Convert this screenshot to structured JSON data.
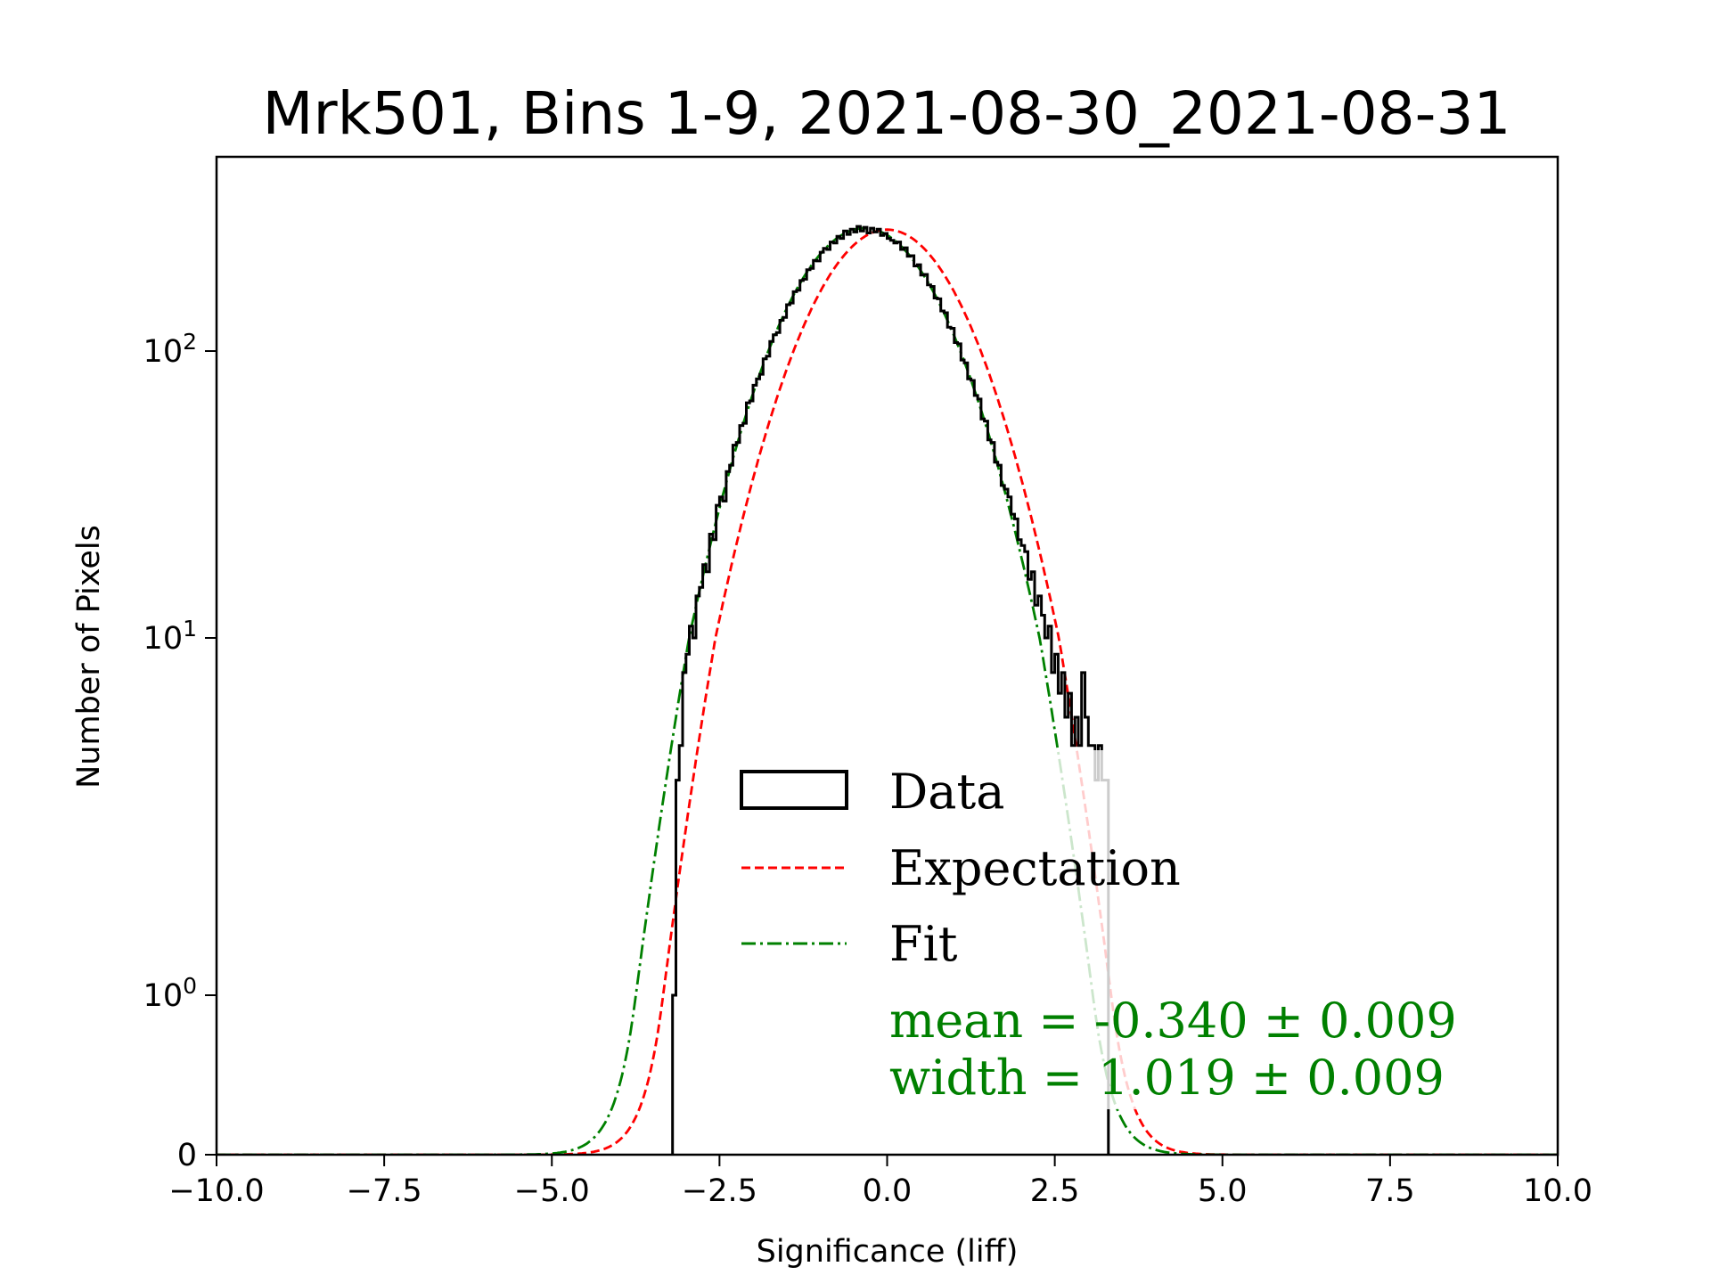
{
  "chart_data": {
    "type": "histogram",
    "title": "Mrk501, Bins 1-9, 2021-08-30_2021-08-31",
    "xlabel": "Significance (liff)",
    "ylabel": "Number of Pixels",
    "xlim": [
      -10,
      10
    ],
    "yscale": "symlog-like",
    "x_ticks": [
      -10,
      -7.5,
      -5,
      -2.5,
      0,
      2.5,
      5,
      7.5,
      10
    ],
    "x_tick_labels": [
      "−10.0",
      "−7.5",
      "−5.0",
      "−2.5",
      "0.0",
      "2.5",
      "5.0",
      "7.5",
      "10.0"
    ],
    "y_ticks": [
      {
        "value": 0,
        "base": "0",
        "exp": ""
      },
      {
        "value": 1,
        "base": "10",
        "exp": "0"
      },
      {
        "value": 10,
        "base": "10",
        "exp": "1"
      },
      {
        "value": 100,
        "base": "10",
        "exp": "2"
      }
    ],
    "histogram": {
      "name": "Data",
      "bin_start": -3.2,
      "bin_width": 0.05,
      "counts": [
        1,
        4,
        5,
        8,
        9,
        11,
        10,
        14,
        15,
        18,
        17,
        23,
        22,
        29,
        31,
        30,
        38,
        40,
        47,
        48,
        55,
        56,
        66,
        67,
        76,
        80,
        83,
        94,
        96,
        108,
        114,
        116,
        128,
        131,
        145,
        147,
        161,
        163,
        176,
        178,
        192,
        194,
        207,
        206,
        221,
        228,
        226,
        240,
        238,
        251,
        247,
        262,
        255,
        266,
        260,
        272,
        262,
        270,
        258,
        268,
        260,
        266,
        253,
        257,
        247,
        243,
        238,
        240,
        226,
        229,
        214,
        215,
        198,
        200,
        184,
        185,
        170,
        168,
        153,
        152,
        138,
        136,
        121,
        120,
        107,
        106,
        93,
        91,
        80,
        79,
        70,
        68,
        58,
        57,
        49,
        48,
        41,
        40,
        34,
        33,
        31,
        27,
        26,
        22,
        21,
        20,
        16,
        17,
        13,
        14,
        12,
        10,
        11,
        8,
        9,
        7,
        8,
        6,
        7,
        5,
        6,
        5,
        8,
        6,
        5,
        5,
        4,
        5,
        4,
        4
      ],
      "color": "#000000"
    },
    "expectation": {
      "name": "Expectation",
      "mean": 0,
      "width": 1,
      "amplitude": 265,
      "color": "#ff0000"
    },
    "fit": {
      "name": "Fit",
      "mean": -0.34,
      "width": 1.019,
      "amplitude": 268,
      "color": "#008000"
    },
    "legend": {
      "placement": "lower-center",
      "entries": [
        "Data",
        "Expectation",
        "Fit"
      ],
      "mean_text": "mean = -0.340 ± 0.009",
      "width_text": "width = 1.019 ± 0.009"
    }
  }
}
